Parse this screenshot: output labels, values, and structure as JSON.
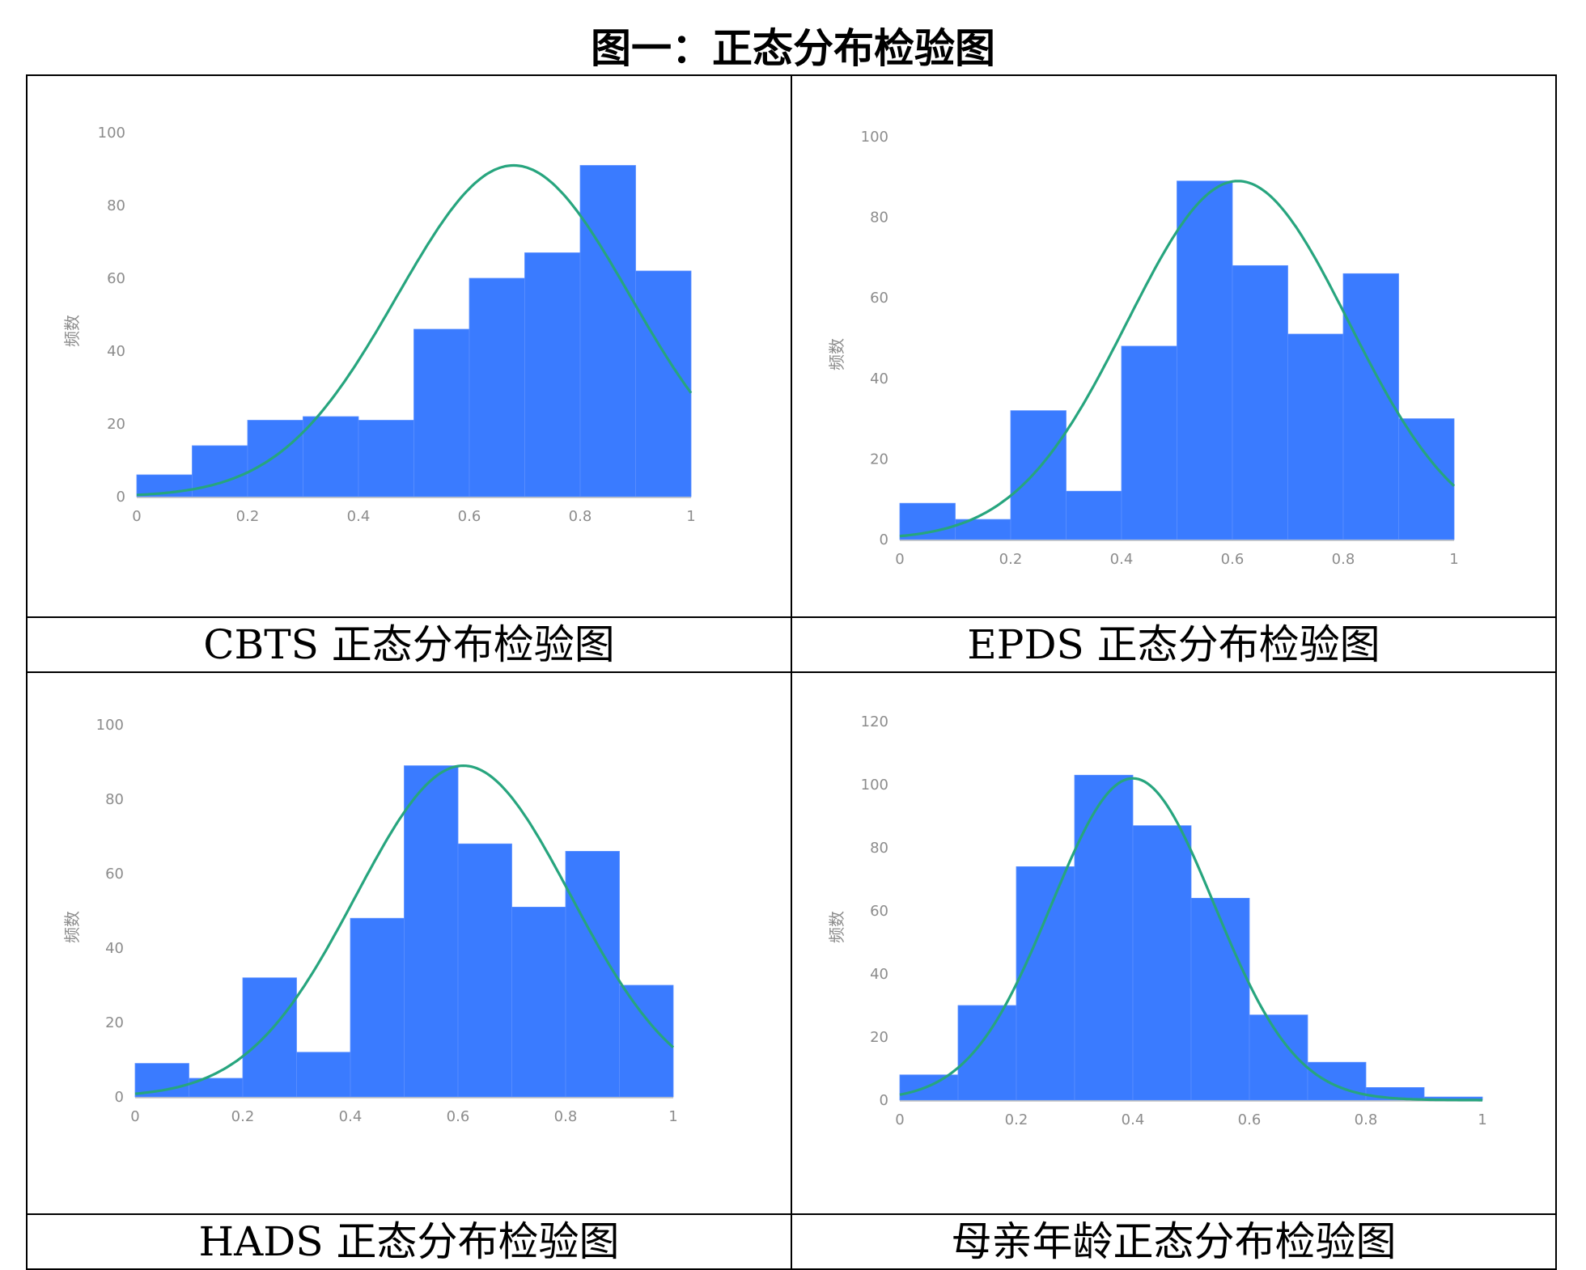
{
  "title": "图一：正态分布检验图",
  "colors": {
    "bar": "#3a7bff",
    "curve": "#27a57e",
    "axis": "#bdbdbd",
    "tick_text": "#8c8c8c"
  },
  "captions": [
    "CBTS 正态分布检验图",
    "EPDS 正态分布检验图",
    "HADS 正态分布检验图",
    "母亲年龄正态分布检验图"
  ],
  "chart_data": [
    {
      "type": "bar",
      "subtype": "histogram-with-normal-curve",
      "ylabel": "频数",
      "x_ticks": [
        "0",
        "0.2",
        "0.4",
        "0.6",
        "0.8",
        "1"
      ],
      "y_ticks": [
        "0",
        "20",
        "40",
        "60",
        "80",
        "100"
      ],
      "xlim": [
        0,
        1
      ],
      "ylim": [
        0,
        100
      ],
      "bin_edges": [
        0,
        0.1,
        0.2,
        0.3,
        0.4,
        0.5,
        0.6,
        0.7,
        0.8,
        0.9,
        1.0
      ],
      "values": [
        6,
        14,
        21,
        22,
        21,
        46,
        60,
        67,
        91,
        62
      ],
      "curve": {
        "mean": 0.68,
        "sd": 0.21,
        "peak": 91
      }
    },
    {
      "type": "bar",
      "subtype": "histogram-with-normal-curve",
      "ylabel": "频数",
      "x_ticks": [
        "0",
        "0.2",
        "0.4",
        "0.6",
        "0.8",
        "1"
      ],
      "y_ticks": [
        "0",
        "20",
        "40",
        "60",
        "80",
        "100"
      ],
      "xlim": [
        0,
        1
      ],
      "ylim": [
        0,
        100
      ],
      "bin_edges": [
        0,
        0.1,
        0.2,
        0.3,
        0.4,
        0.5,
        0.6,
        0.7,
        0.8,
        0.9,
        1.0
      ],
      "values": [
        9,
        5,
        32,
        12,
        48,
        89,
        68,
        51,
        66,
        30
      ],
      "curve": {
        "mean": 0.61,
        "sd": 0.2,
        "peak": 89
      }
    },
    {
      "type": "bar",
      "subtype": "histogram-with-normal-curve",
      "ylabel": "频数",
      "x_ticks": [
        "0",
        "0.2",
        "0.4",
        "0.6",
        "0.8",
        "1"
      ],
      "y_ticks": [
        "0",
        "20",
        "40",
        "60",
        "80",
        "100"
      ],
      "xlim": [
        0,
        1
      ],
      "ylim": [
        0,
        100
      ],
      "bin_edges": [
        0,
        0.1,
        0.2,
        0.3,
        0.4,
        0.5,
        0.6,
        0.7,
        0.8,
        0.9,
        1.0
      ],
      "values": [
        9,
        5,
        32,
        12,
        48,
        89,
        68,
        51,
        66,
        30
      ],
      "curve": {
        "mean": 0.61,
        "sd": 0.2,
        "peak": 89
      }
    },
    {
      "type": "bar",
      "subtype": "histogram-with-normal-curve",
      "ylabel": "频数",
      "x_ticks": [
        "0",
        "0.2",
        "0.4",
        "0.6",
        "0.8",
        "1"
      ],
      "y_ticks": [
        "0",
        "20",
        "40",
        "60",
        "80",
        "100",
        "120"
      ],
      "xlim": [
        0,
        1
      ],
      "ylim": [
        0,
        120
      ],
      "bin_edges": [
        0,
        0.1,
        0.2,
        0.3,
        0.4,
        0.5,
        0.6,
        0.7,
        0.8,
        0.9,
        1.0
      ],
      "values": [
        8,
        30,
        74,
        103,
        87,
        64,
        27,
        12,
        4,
        1
      ],
      "curve": {
        "mean": 0.4,
        "sd": 0.14,
        "peak": 102
      }
    }
  ]
}
